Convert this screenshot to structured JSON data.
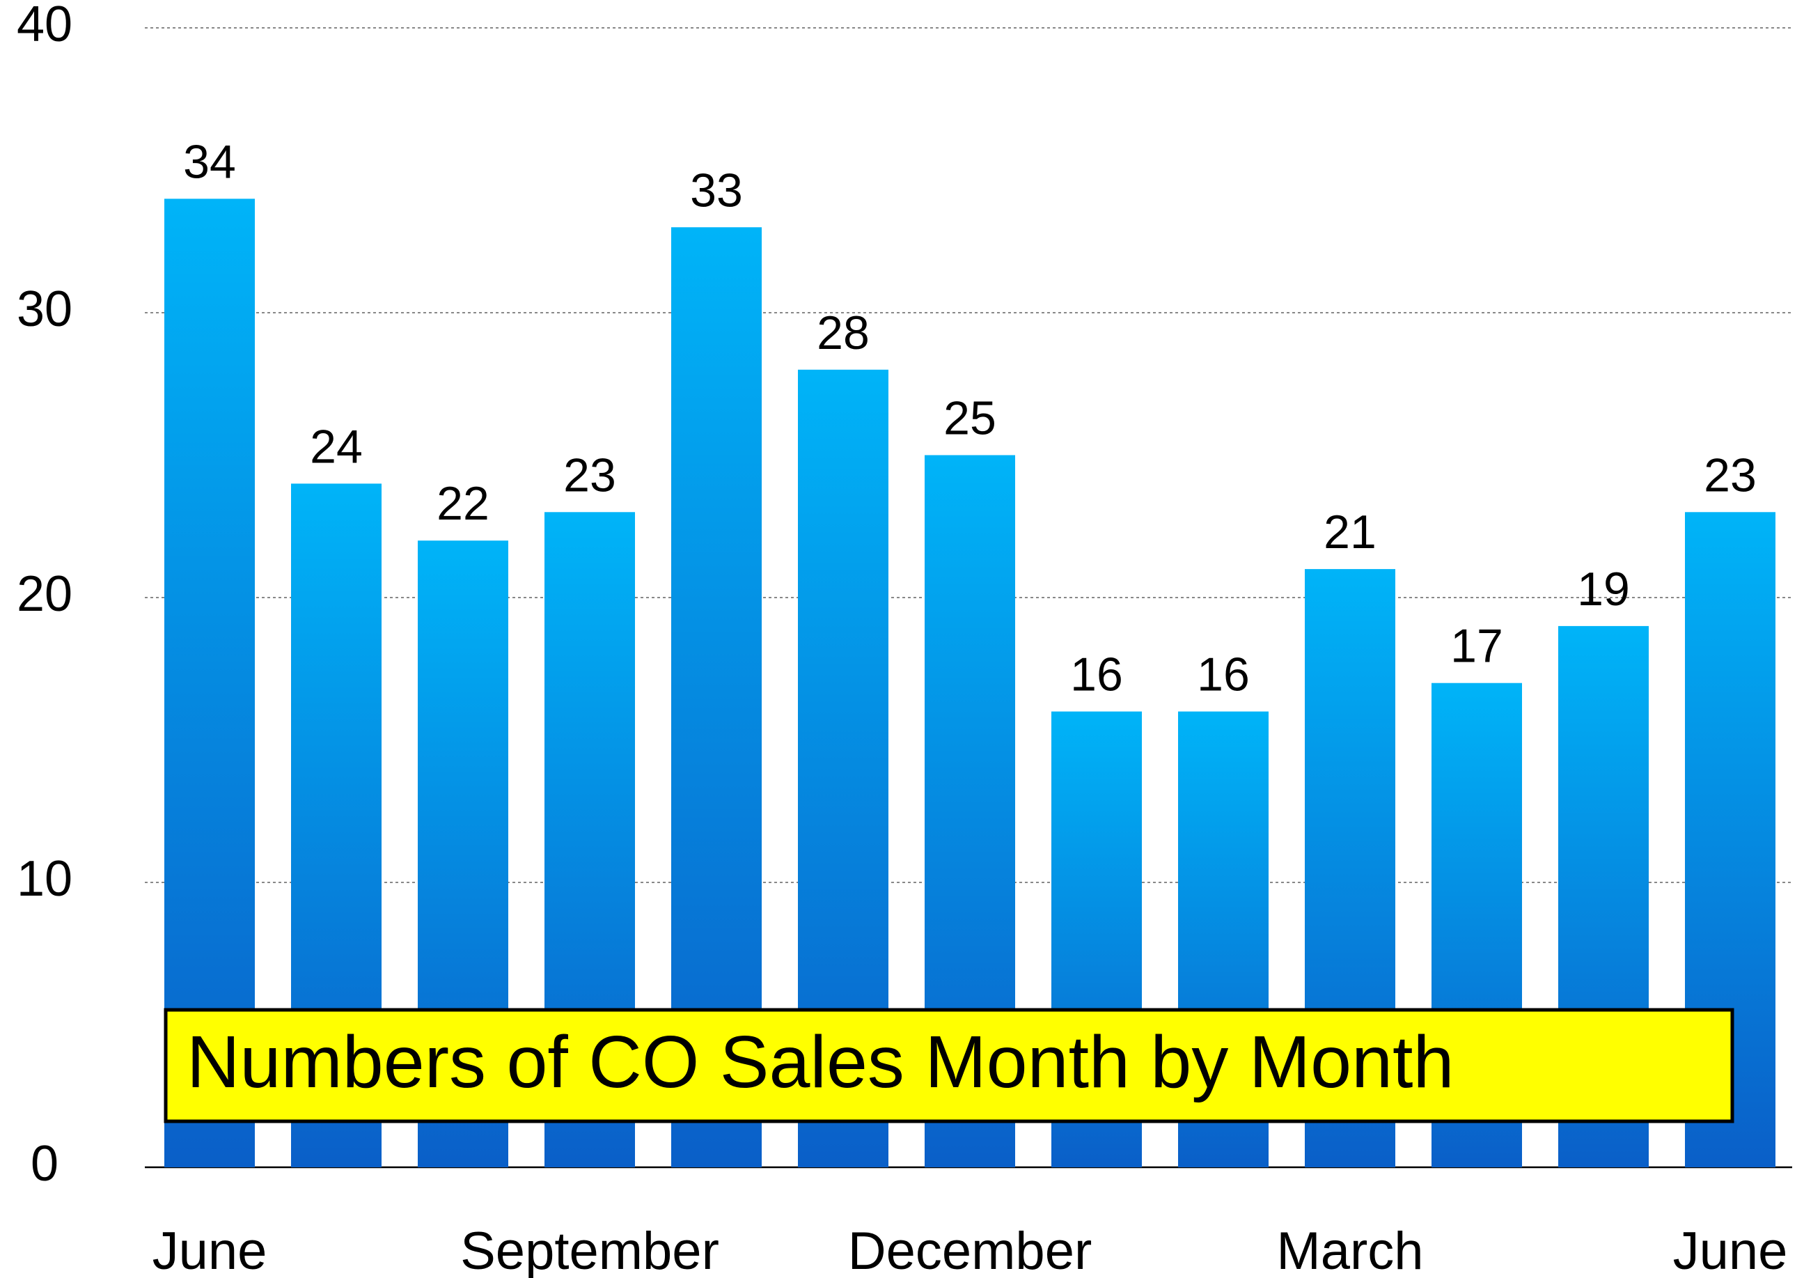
{
  "chart_data": {
    "type": "bar",
    "title": "Numbers of CO Sales Month by Month",
    "categories": [
      "June",
      null,
      null,
      "September",
      null,
      null,
      "December",
      null,
      null,
      "March",
      null,
      null,
      "June"
    ],
    "values": [
      34,
      24,
      22,
      23,
      33,
      28,
      25,
      16,
      16,
      21,
      17,
      19,
      23
    ],
    "color": [
      "#00b4f8",
      "#0a5fc8"
    ],
    "ylim": [
      0,
      40
    ],
    "yticks": [
      0,
      10,
      20,
      30,
      40
    ],
    "grid": true
  }
}
